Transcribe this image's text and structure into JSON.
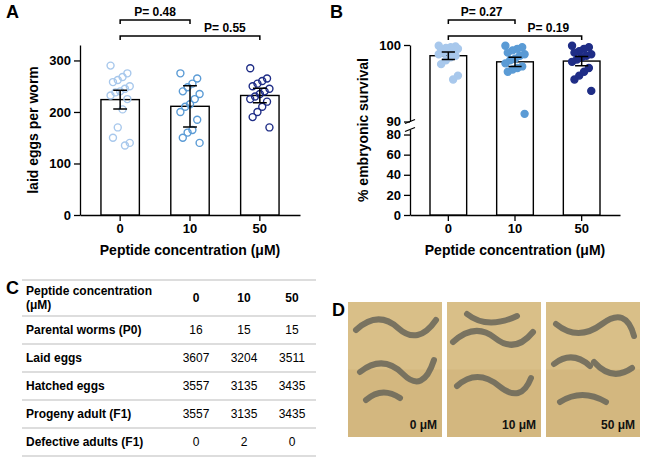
{
  "chart_data": [
    {
      "panel_label": "A",
      "type": "bar",
      "categories": [
        "0",
        "10",
        "50"
      ],
      "values": [
        224,
        211,
        232
      ],
      "errors": [
        18,
        40,
        14
      ],
      "points": [
        [
          290,
          275,
          268,
          262,
          258,
          250,
          245,
          240,
          238,
          232,
          225,
          205,
          170,
          150,
          140,
          135
        ],
        [
          275,
          265,
          255,
          248,
          240,
          235,
          225,
          215,
          210,
          200,
          185,
          165,
          160,
          150,
          140
        ],
        [
          285,
          265,
          260,
          255,
          250,
          245,
          240,
          235,
          230,
          225,
          220,
          210,
          200,
          190,
          170
        ]
      ],
      "color": "#ffffff",
      "colors": [
        "#a8c8ec",
        "#5b9bd5",
        "#1f2d86"
      ],
      "marker": "open-circle",
      "x_label": "Peptide concentration (μM)",
      "y_label": "laid eggs per worm",
      "ylim": [
        0,
        330
      ],
      "yticks": [
        0,
        100,
        200,
        300
      ],
      "annotations": [
        {
          "text": "P= 0.48",
          "from": 0,
          "to": 1
        },
        {
          "text": "P= 0.55",
          "from": 0,
          "to": 2
        }
      ]
    },
    {
      "panel_label": "B",
      "type": "bar",
      "categories": [
        "0",
        "10",
        "50"
      ],
      "values": [
        98.6,
        97.8,
        97.9
      ],
      "errors": [
        0.5,
        0.6,
        0.6
      ],
      "points": [
        [
          99.9,
          99.8,
          99.7,
          99.6,
          99.5,
          99.5,
          99.3,
          99.2,
          99.0,
          98.8,
          98.6,
          98.4,
          98.0,
          97.5,
          96.0,
          95.5
        ],
        [
          99.9,
          99.7,
          99.5,
          99.3,
          99.0,
          98.8,
          98.6,
          98.2,
          98.0,
          97.6,
          97.2,
          97.0,
          96.8,
          96.5,
          91.0
        ],
        [
          99.9,
          99.7,
          99.5,
          99.2,
          99.0,
          98.8,
          98.6,
          98.4,
          98.1,
          97.8,
          97.0,
          96.5,
          96.0,
          95.5,
          94.0
        ]
      ],
      "color": "#ffffff",
      "colors": [
        "#a8c8ec",
        "#5b9bd5",
        "#1f2d86"
      ],
      "marker": "circle",
      "x_label": "Peptide concentration (μM)",
      "y_label": "% embryonic survival",
      "ylim": [
        0,
        100
      ],
      "yticks": [
        0,
        20,
        40,
        60,
        80,
        90,
        100
      ],
      "annotations": [
        {
          "text": "P= 0.27",
          "from": 0,
          "to": 1
        },
        {
          "text": "P= 0.19",
          "from": 0,
          "to": 2
        }
      ]
    }
  ],
  "table": {
    "panel_label": "C",
    "header": [
      "Peptide concentration (μM)",
      "0",
      "10",
      "50"
    ],
    "rows": [
      [
        "Parental worms (P0)",
        16,
        15,
        15
      ],
      [
        "Laid eggs",
        3607,
        3204,
        3511
      ],
      [
        "Hatched eggs",
        3557,
        3135,
        3435
      ],
      [
        "Progeny adult (F1)",
        3557,
        3135,
        3435
      ],
      [
        "Defective adults (F1)",
        0,
        2,
        0
      ]
    ]
  },
  "images": {
    "panel_label": "D",
    "captions": [
      "0 μM",
      "10 μM",
      "50 μM"
    ]
  }
}
